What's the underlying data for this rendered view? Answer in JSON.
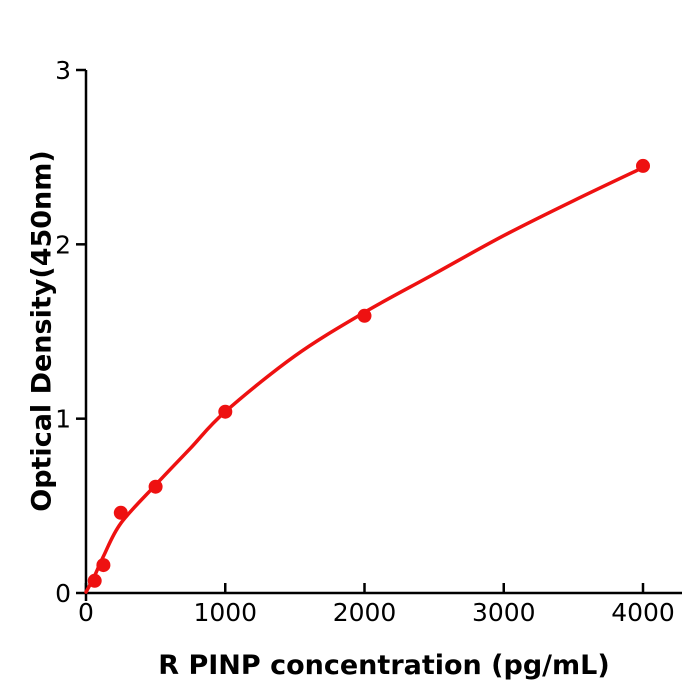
{
  "figure": {
    "background_color": "#ffffff",
    "axis_color": "#000000",
    "text_color": "#000000"
  },
  "chart_data": {
    "type": "scatter",
    "subtype": "ELISA standard curve (scatter points with fitted line)",
    "title": "",
    "xlabel": "R  PINP concentration (pg/mL)",
    "ylabel": "Optical Density(450nm)",
    "xlim": [
      0,
      4280
    ],
    "ylim": [
      0,
      3
    ],
    "x_ticks": [
      0,
      1000,
      2000,
      3000,
      4000
    ],
    "y_ticks": [
      0,
      1,
      2,
      3
    ],
    "grid": false,
    "legend_position": "none",
    "point_color": "#ee1111",
    "line_color": "#ee1111",
    "points": [
      {
        "conc": 62.5,
        "od": 0.07
      },
      {
        "conc": 125,
        "od": 0.16
      },
      {
        "conc": 250,
        "od": 0.46
      },
      {
        "conc": 500,
        "od": 0.61
      },
      {
        "conc": 1000,
        "od": 1.04
      },
      {
        "conc": 2000,
        "od": 1.59
      },
      {
        "conc": 4000,
        "od": 2.45
      }
    ],
    "fit_curve": [
      [
        0,
        0.005
      ],
      [
        62.5,
        0.1
      ],
      [
        125,
        0.21
      ],
      [
        250,
        0.4
      ],
      [
        500,
        0.62
      ],
      [
        750,
        0.83
      ],
      [
        1000,
        1.04
      ],
      [
        1500,
        1.36
      ],
      [
        2000,
        1.61
      ],
      [
        2500,
        1.83
      ],
      [
        3000,
        2.05
      ],
      [
        3500,
        2.25
      ],
      [
        4000,
        2.44
      ]
    ]
  }
}
